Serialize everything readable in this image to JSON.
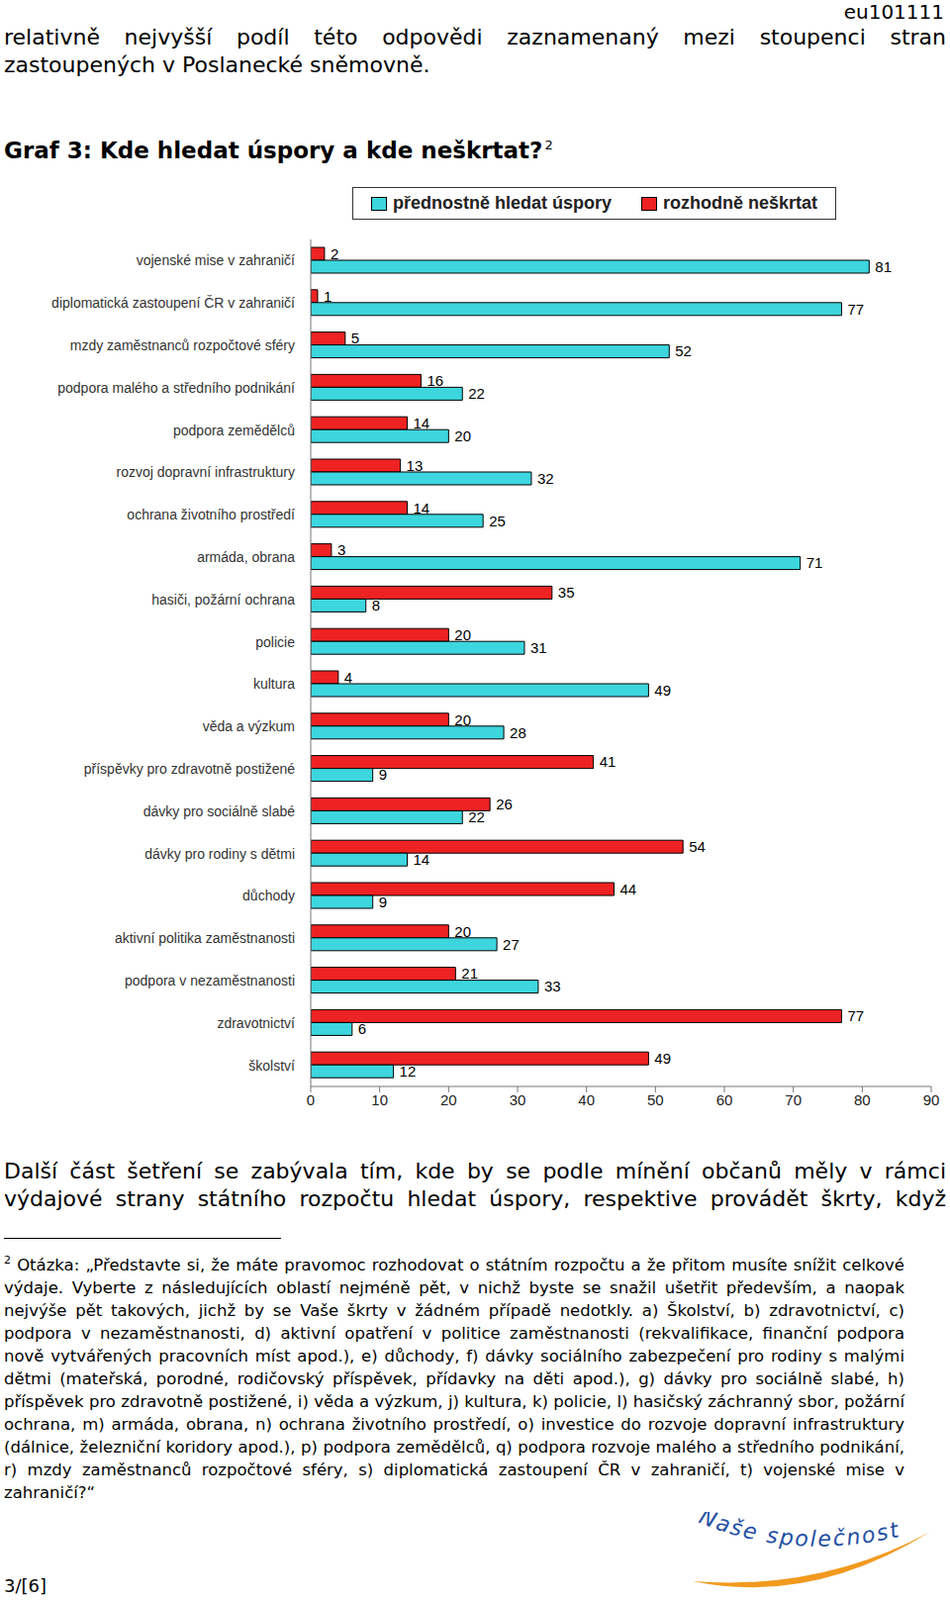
{
  "page": {
    "header": "eu101111",
    "paragraph_before": "relativně nejvyšší podíl této odpovědi zaznamenaný mezi stoupenci stran zastoupených v Poslanecké sněmovně.",
    "heading": "Graf 3: Kde hledat úspory a kde neškrtat?",
    "heading_footnote_mark": "2",
    "paragraph_after": "Další část šetření se zabývala tím, kde by se podle mínění občanů měly v rámci výdajové strany státního rozpočtu hledat úspory, respektive provádět škrty, když",
    "footnote": {
      "mark": "2",
      "text": "Otázka: „Představte si, že máte pravomoc rozhodovat o státním rozpočtu  a že přitom musíte snížit celkové výdaje. Vyberte z následujících oblastí nejméně pět, v nichž byste se snažil ušetřit především, a naopak nejvýše pět takových, jichž by se Vaše škrty v žádném případě nedotkly. a) Školství, b) zdravotnictví, c) podpora v nezaměstnanosti, d) aktivní opatření v politice zaměstnanosti (rekvalifikace, finanční podpora nově vytvářených pracovních míst apod.), e) důchody, f) dávky sociálního zabezpečení pro rodiny s malými dětmi (mateřská, porodné, rodičovský příspěvek, přídavky na děti apod.), g) dávky pro sociálně slabé, h) příspěvek pro zdravotně postižené, i) věda a výzkum, j) kultura, k) policie, l) hasičský záchranný sbor, požární ochrana, m) armáda, obrana, n) ochrana životního prostředí, o) investice do rozvoje dopravní infrastruktury (dálnice, železniční koridory apod.), p) podpora zemědělců, q) podpora rozvoje malého a středního podnikání, r) mzdy zaměstnanců rozpočtové sféry, s) diplomatická zastoupení ČR v zahraničí, t) vojenské mise v zahraničí?“"
    },
    "page_number": "3/[6]",
    "logo": "Naše společnost"
  },
  "chart_data": {
    "type": "bar",
    "orientation": "horizontal",
    "categories": [
      "vojenské mise v zahraničí",
      "diplomatická zastoupení ČR v zahraničí",
      "mzdy zaměstnanců rozpočtové sféry",
      "podpora malého a středního podnikání",
      "podpora zemědělců",
      "rozvoj dopravní infrastruktury",
      "ochrana životního prostředí",
      "armáda, obrana",
      "hasiči, požární ochrana",
      "policie",
      "kultura",
      "věda a výzkum",
      "příspěvky pro zdravotně postižené",
      "dávky pro sociálně slabé",
      "dávky pro rodiny s dětmi",
      "důchody",
      "aktivní politika zaměstnanosti",
      "podpora v nezaměstnanosti",
      "zdravotnictví",
      "školství"
    ],
    "series": [
      {
        "name": "přednostně hledat úspory",
        "color": "#3dd6de",
        "values": [
          81,
          77,
          52,
          22,
          20,
          32,
          25,
          71,
          8,
          31,
          49,
          28,
          9,
          22,
          14,
          9,
          27,
          33,
          6,
          12
        ]
      },
      {
        "name": "rozhodně neškrtat",
        "color": "#ee2222",
        "values": [
          2,
          1,
          5,
          16,
          14,
          13,
          14,
          3,
          35,
          20,
          4,
          20,
          41,
          26,
          54,
          44,
          20,
          21,
          77,
          49
        ]
      }
    ],
    "xlim": [
      0,
      90
    ],
    "xticks": [
      0,
      10,
      20,
      30,
      40,
      50,
      60,
      70,
      80,
      90
    ],
    "data_labels": true,
    "legend": "top",
    "grid": false
  }
}
